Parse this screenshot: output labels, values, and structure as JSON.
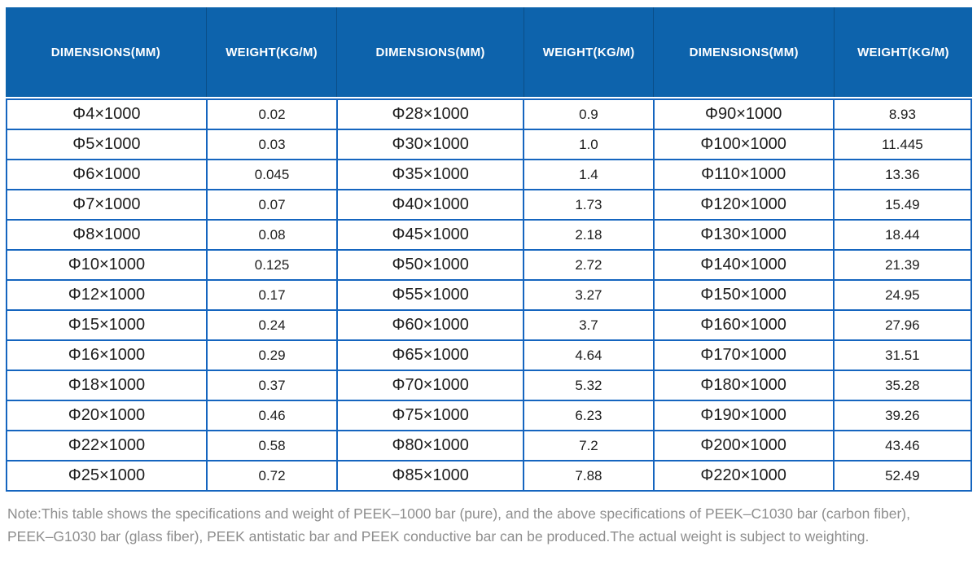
{
  "colors": {
    "header_bg": "#0d63ac",
    "header_divider": "#0a4e88",
    "cell_border": "#1565bf",
    "body_text": "#1d1d1d",
    "note_text": "#8e8e8e"
  },
  "header": {
    "columns": [
      "DIMENSIONS(MM)",
      "WEIGHT(KG/M)",
      "DIMENSIONS(MM)",
      "WEIGHT(KG/M)",
      "DIMENSIONS(MM)",
      "WEIGHT(KG/M)"
    ]
  },
  "table": {
    "rows": [
      [
        "Φ4×1000",
        "0.02",
        "Φ28×1000",
        "0.9",
        "Φ90×1000",
        "8.93"
      ],
      [
        "Φ5×1000",
        "0.03",
        "Φ30×1000",
        "1.0",
        "Φ100×1000",
        "11.445"
      ],
      [
        "Φ6×1000",
        "0.045",
        "Φ35×1000",
        "1.4",
        "Φ110×1000",
        "13.36"
      ],
      [
        "Φ7×1000",
        "0.07",
        "Φ40×1000",
        "1.73",
        "Φ120×1000",
        "15.49"
      ],
      [
        "Φ8×1000",
        "0.08",
        "Φ45×1000",
        "2.18",
        "Φ130×1000",
        "18.44"
      ],
      [
        "Φ10×1000",
        "0.125",
        "Φ50×1000",
        "2.72",
        "Φ140×1000",
        "21.39"
      ],
      [
        "Φ12×1000",
        "0.17",
        "Φ55×1000",
        "3.27",
        "Φ150×1000",
        "24.95"
      ],
      [
        "Φ15×1000",
        "0.24",
        "Φ60×1000",
        "3.7",
        "Φ160×1000",
        "27.96"
      ],
      [
        "Φ16×1000",
        "0.29",
        "Φ65×1000",
        "4.64",
        "Φ170×1000",
        "31.51"
      ],
      [
        "Φ18×1000",
        "0.37",
        "Φ70×1000",
        "5.32",
        "Φ180×1000",
        "35.28"
      ],
      [
        "Φ20×1000",
        "0.46",
        "Φ75×1000",
        "6.23",
        "Φ190×1000",
        "39.26"
      ],
      [
        "Φ22×1000",
        "0.58",
        "Φ80×1000",
        "7.2",
        "Φ200×1000",
        "43.46"
      ],
      [
        "Φ25×1000",
        "0.72",
        "Φ85×1000",
        "7.88",
        "Φ220×1000",
        "52.49"
      ]
    ]
  },
  "note": {
    "line1": "Note:This table shows the specifications and weight of PEEK–1000 bar (pure), and the above specifications of PEEK–C1030 bar (carbon fiber),",
    "line2": "PEEK–G1030 bar (glass fiber), PEEK antistatic bar and PEEK conductive bar can be produced.The actual weight is subject to weighting."
  }
}
